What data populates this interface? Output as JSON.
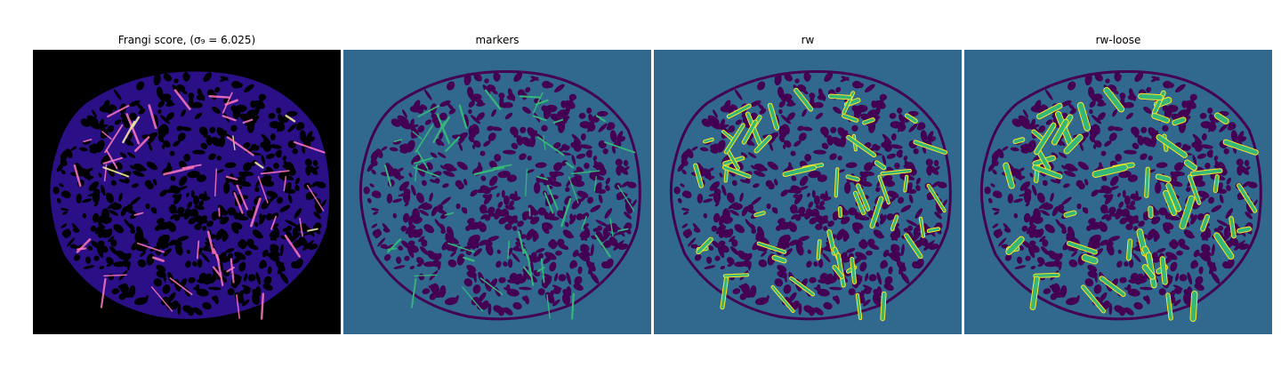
{
  "panels": [
    {
      "title": "Frangi score, (σ₉ = 6.025)",
      "background": "#000000",
      "texture": "#3b13a8",
      "mark": "#ff77c0",
      "hot": "#fff2a0"
    },
    {
      "title": "markers",
      "background": "#31688e",
      "texture": "#440154",
      "mark": "#35b779"
    },
    {
      "title": "rw",
      "background": "#31688e",
      "texture": "#440154",
      "mark": "#35b779",
      "outline": "#fde725"
    },
    {
      "title": "rw-loose",
      "background": "#31688e",
      "texture": "#440154",
      "mark": "#35b779",
      "outline": "#fde725"
    }
  ]
}
